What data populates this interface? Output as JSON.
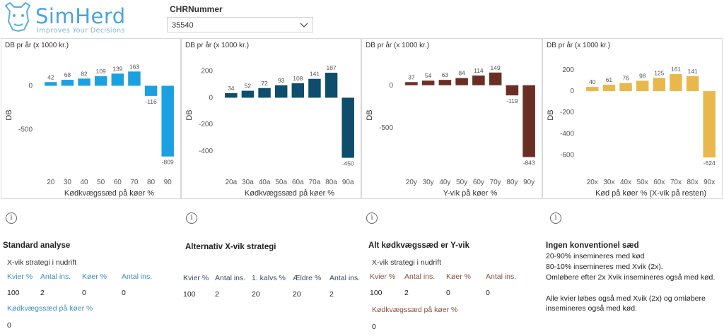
{
  "logo": {
    "name": "SimHerd",
    "tagline": "Improves Your Decisions"
  },
  "filter": {
    "label": "CHRNummer",
    "value": "35540"
  },
  "colors": {
    "c1": "#1ba1e2",
    "c2": "#0e4d6b",
    "c3": "#6b2e25",
    "c4": "#e8b84d"
  },
  "chart_data": [
    {
      "type": "bar",
      "title": "DB pr år (x 1000 kr.)",
      "ylabel": "DB",
      "xlabel": "Kødkvægssæd på køer %",
      "categories": [
        "20",
        "30",
        "40",
        "50",
        "60",
        "70",
        "80",
        "90"
      ],
      "values": [
        42,
        68,
        82,
        109,
        139,
        163,
        -116,
        -809
      ],
      "yticks": [
        0,
        -500
      ],
      "ylim": [
        -900,
        230
      ]
    },
    {
      "type": "bar",
      "title": "DB pr år (x 1000 kr.)",
      "ylabel": "DB",
      "xlabel": "Kødkvægssæd på køer %",
      "categories": [
        "20a",
        "30a",
        "40a",
        "50a",
        "60a",
        "70a",
        "80a",
        "90a"
      ],
      "values": [
        34,
        52,
        72,
        93,
        108,
        141,
        187,
        -450
      ],
      "yticks": [
        200,
        0,
        -200,
        -400
      ],
      "ylim": [
        -500,
        240
      ]
    },
    {
      "type": "bar",
      "title": "DB pr år (x 1000 kr.)",
      "ylabel": "DB",
      "xlabel": "Y-vik på køer %",
      "categories": [
        "20y",
        "30y",
        "40y",
        "50y",
        "60y",
        "70y",
        "80y",
        "90y"
      ],
      "values": [
        37,
        54,
        63,
        84,
        114,
        149,
        -119,
        -843
      ],
      "yticks": [
        0,
        -500
      ],
      "ylim": [
        -930,
        230
      ]
    },
    {
      "type": "bar",
      "title": "DB pr år (x 1000 kr.)",
      "ylabel": "DB",
      "xlabel": "Kød på køer % (X-vik på resten)",
      "categories": [
        "20x",
        "30x",
        "40x",
        "50x",
        "60x",
        "70x",
        "80x",
        "90x"
      ],
      "values": [
        40,
        61,
        76,
        98,
        125,
        161,
        141,
        -624
      ],
      "yticks": [
        200,
        0,
        -200,
        -400,
        -600
      ],
      "ylim": [
        -690,
        240
      ]
    }
  ],
  "panels": [
    {
      "title": "Standard analyse",
      "sub": "X-vik strategi i nudrift",
      "headers": [
        "Kvier %",
        "Antal ins.",
        "Køer %",
        "Antal ins."
      ],
      "values": [
        "100",
        "2",
        "0",
        "0"
      ],
      "extra_header": "Kødkvægssæd på køer %",
      "extra_value": "0"
    },
    {
      "title": "Alternativ X-vik strategi",
      "headers": [
        "Kvier %",
        "Antal ins.",
        "1. kalvs %",
        "Ældre %",
        "Antal ins."
      ],
      "values": [
        "100",
        "2",
        "20",
        "20",
        "2"
      ]
    },
    {
      "title": "Alt kødkvægssæd er Y-vik",
      "sub": "X-vik strategi i nudrift",
      "headers": [
        "Kvier %",
        "Antal ins.",
        "Køer %",
        "Antal ins."
      ],
      "values": [
        "100",
        "2",
        "0",
        "0"
      ],
      "extra_header": "Kødkvægssæd på køer %",
      "extra_value": "0"
    },
    {
      "title": "Ingen konventionel sæd",
      "lines": [
        "20-90% insemineres med kød",
        "80-10% insemineres med Xvik (2x).",
        "Omløbere efter 2x Xvik insemineres også med kød.",
        "",
        "Alle kvier løbes også med Xvik (2x) og omløbere",
        "insemineres også med kød."
      ]
    }
  ]
}
